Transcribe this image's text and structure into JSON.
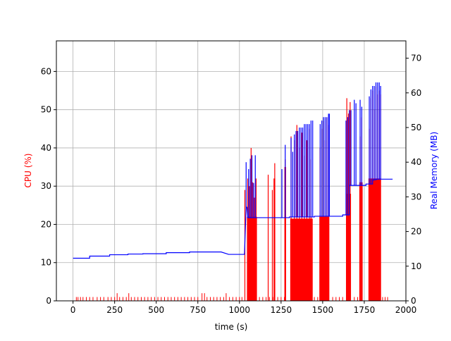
{
  "chart_data": {
    "type": "line",
    "xlabel": "time (s)",
    "ylabel_left": "CPU (%)",
    "ylabel_right": "Real Memory (MB)",
    "xlim": [
      -100,
      2000
    ],
    "ylim_left": [
      0,
      68
    ],
    "ylim_right": [
      0,
      75
    ],
    "xticks": [
      0,
      250,
      500,
      750,
      1000,
      1250,
      1500,
      1750,
      2000
    ],
    "yticks_left": [
      0,
      10,
      20,
      30,
      40,
      50,
      60
    ],
    "yticks_right": [
      0,
      10,
      20,
      30,
      40,
      50,
      60,
      70
    ],
    "grid": true,
    "series": [
      {
        "axis": "left",
        "color": "#ff0000",
        "baseline_spikes": [
          [
            20,
            1
          ],
          [
            30,
            1
          ],
          [
            45,
            1
          ],
          [
            60,
            1
          ],
          [
            80,
            1
          ],
          [
            100,
            1
          ],
          [
            120,
            1
          ],
          [
            145,
            1
          ],
          [
            165,
            1
          ],
          [
            185,
            1
          ],
          [
            210,
            1
          ],
          [
            230,
            1
          ],
          [
            250,
            1
          ],
          [
            265,
            2
          ],
          [
            280,
            1
          ],
          [
            300,
            1
          ],
          [
            320,
            1
          ],
          [
            335,
            2
          ],
          [
            350,
            1
          ],
          [
            370,
            1
          ],
          [
            390,
            1
          ],
          [
            410,
            1
          ],
          [
            430,
            1
          ],
          [
            450,
            1
          ],
          [
            470,
            1
          ],
          [
            490,
            1
          ],
          [
            510,
            1
          ],
          [
            530,
            1
          ],
          [
            550,
            1
          ],
          [
            570,
            1
          ],
          [
            590,
            1
          ],
          [
            610,
            1
          ],
          [
            630,
            1
          ],
          [
            650,
            1
          ],
          [
            670,
            1
          ],
          [
            690,
            1
          ],
          [
            710,
            1
          ],
          [
            730,
            1
          ],
          [
            750,
            1
          ],
          [
            775,
            2
          ],
          [
            790,
            2
          ],
          [
            805,
            1
          ],
          [
            825,
            1
          ],
          [
            845,
            1
          ],
          [
            865,
            1
          ],
          [
            885,
            1
          ],
          [
            905,
            1
          ],
          [
            920,
            2
          ],
          [
            940,
            1
          ],
          [
            960,
            1
          ],
          [
            980,
            1
          ],
          [
            1000,
            1
          ],
          [
            1015,
            1
          ],
          [
            1100,
            1
          ],
          [
            1120,
            1
          ],
          [
            1140,
            1
          ],
          [
            1160,
            1
          ],
          [
            1180,
            1
          ],
          [
            1200,
            1
          ],
          [
            1230,
            1
          ],
          [
            1250,
            1
          ],
          [
            1270,
            1
          ],
          [
            1450,
            1
          ],
          [
            1470,
            1
          ],
          [
            1560,
            1
          ],
          [
            1580,
            1
          ],
          [
            1600,
            1
          ],
          [
            1620,
            1
          ],
          [
            1690,
            1
          ],
          [
            1710,
            1
          ],
          [
            1860,
            1
          ],
          [
            1875,
            1
          ],
          [
            1890,
            1
          ]
        ],
        "bursts": [
          {
            "x": [
              1030,
              1035
            ],
            "y": 29
          },
          {
            "x": [
              1045,
              1105
            ],
            "y": 22,
            "peaks": [
              [
                1050,
                32
              ],
              [
                1060,
                30
              ],
              [
                1070,
                40
              ],
              [
                1080,
                31
              ],
              [
                1090,
                27
              ],
              [
                1100,
                32
              ]
            ]
          },
          {
            "x": [
              1170,
              1175
            ],
            "y": 33
          },
          {
            "x": [
              1195,
              1200
            ],
            "y": 29
          },
          {
            "x": [
              1205,
              1215
            ],
            "y": 32,
            "peaks": [
              [
                1212,
                36
              ]
            ]
          },
          {
            "x": [
              1270,
              1280
            ],
            "y": 35,
            "peaks": [
              [
                1275,
                37
              ]
            ]
          },
          {
            "x": [
              1305,
              1440
            ],
            "y": 21.5,
            "peaks": [
              [
                1310,
                43
              ],
              [
                1330,
                42
              ],
              [
                1345,
                46
              ],
              [
                1360,
                40
              ],
              [
                1375,
                44
              ],
              [
                1390,
                38
              ],
              [
                1405,
                42
              ],
              [
                1420,
                45
              ],
              [
                1430,
                37
              ]
            ]
          },
          {
            "x": [
              1480,
              1540
            ],
            "y": 22,
            "peaks": [
              [
                1485,
                40
              ],
              [
                1495,
                45
              ],
              [
                1505,
                47
              ],
              [
                1515,
                42
              ],
              [
                1525,
                48
              ],
              [
                1535,
                46
              ]
            ]
          },
          {
            "x": [
              1640,
              1670
            ],
            "y": 28,
            "peaks": [
              [
                1645,
                53
              ],
              [
                1655,
                49
              ],
              [
                1665,
                52
              ]
            ]
          },
          {
            "x": [
              1720,
              1740
            ],
            "y": 31,
            "peaks": [
              [
                1725,
                43
              ],
              [
                1735,
                48
              ]
            ]
          },
          {
            "x": [
              1775,
              1850
            ],
            "y": 32,
            "peaks": [
              [
                1780,
                45
              ],
              [
                1790,
                53
              ],
              [
                1800,
                55
              ],
              [
                1810,
                50
              ],
              [
                1820,
                56
              ],
              [
                1830,
                54
              ],
              [
                1840,
                55
              ],
              [
                1848,
                54
              ]
            ]
          }
        ]
      },
      {
        "axis": "right",
        "color": "#0000ff",
        "baseline": [
          [
            0,
            12.3
          ],
          [
            100,
            12.3
          ],
          [
            100,
            12.9
          ],
          [
            220,
            12.9
          ],
          [
            220,
            13.3
          ],
          [
            330,
            13.3
          ],
          [
            330,
            13.5
          ],
          [
            420,
            13.5
          ],
          [
            420,
            13.6
          ],
          [
            560,
            13.6
          ],
          [
            560,
            13.9
          ],
          [
            700,
            13.9
          ],
          [
            700,
            14.1
          ],
          [
            890,
            14.1
          ],
          [
            935,
            13.4
          ],
          [
            1030,
            13.4
          ],
          [
            1040,
            27
          ],
          [
            1045,
            27
          ],
          [
            1050,
            24
          ],
          [
            1300,
            24
          ],
          [
            1300,
            24.2
          ],
          [
            1450,
            24.2
          ],
          [
            1450,
            24.4
          ],
          [
            1620,
            24.4
          ],
          [
            1620,
            24.8
          ],
          [
            1660,
            24.8
          ],
          [
            1660,
            33.3
          ],
          [
            1760,
            33.3
          ],
          [
            1760,
            33.7
          ],
          [
            1800,
            33.7
          ],
          [
            1800,
            34.8
          ],
          [
            1830,
            35.1
          ],
          [
            1850,
            35.1
          ],
          [
            1920,
            35.1
          ]
        ],
        "spikes": [
          [
            1040,
            40
          ],
          [
            1055,
            38
          ],
          [
            1065,
            41
          ],
          [
            1075,
            42
          ],
          [
            1085,
            34
          ],
          [
            1095,
            42
          ],
          [
            1255,
            38
          ],
          [
            1275,
            45
          ],
          [
            1310,
            47
          ],
          [
            1320,
            43
          ],
          [
            1330,
            48
          ],
          [
            1340,
            49
          ],
          [
            1350,
            49
          ],
          [
            1360,
            50
          ],
          [
            1370,
            50
          ],
          [
            1380,
            50
          ],
          [
            1390,
            51
          ],
          [
            1400,
            51
          ],
          [
            1410,
            51
          ],
          [
            1420,
            51
          ],
          [
            1430,
            52
          ],
          [
            1440,
            52
          ],
          [
            1485,
            51
          ],
          [
            1495,
            52
          ],
          [
            1505,
            53
          ],
          [
            1515,
            53
          ],
          [
            1525,
            53
          ],
          [
            1535,
            54
          ],
          [
            1540,
            54
          ],
          [
            1640,
            52
          ],
          [
            1650,
            53
          ],
          [
            1660,
            55
          ],
          [
            1670,
            55
          ],
          [
            1690,
            58
          ],
          [
            1700,
            57
          ],
          [
            1725,
            58
          ],
          [
            1735,
            56
          ],
          [
            1780,
            59
          ],
          [
            1790,
            61
          ],
          [
            1800,
            62
          ],
          [
            1810,
            62
          ],
          [
            1820,
            63
          ],
          [
            1830,
            63
          ],
          [
            1840,
            63
          ],
          [
            1848,
            62
          ]
        ]
      }
    ]
  }
}
